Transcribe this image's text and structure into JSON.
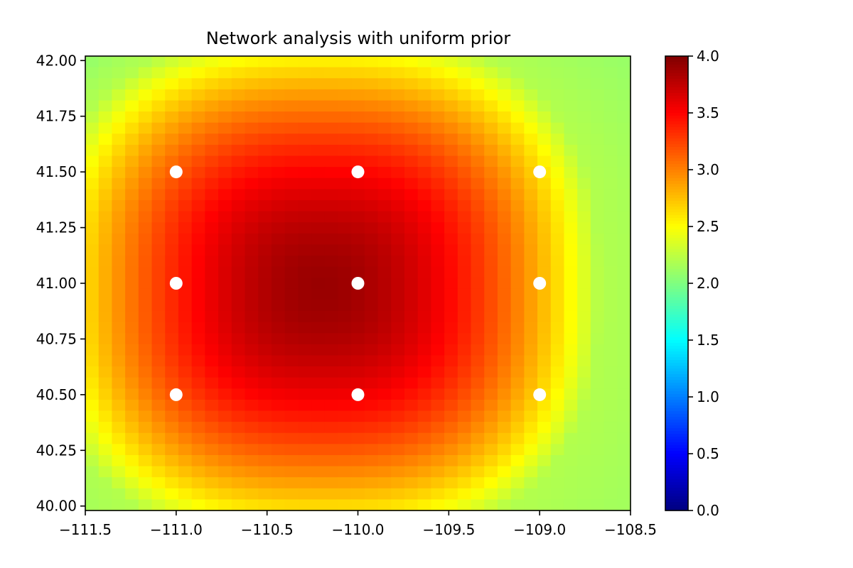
{
  "chart_data": {
    "type": "heatmap",
    "title": "Network analysis with uniform prior",
    "xlabel": "",
    "ylabel": "",
    "xlim": [
      -111.5,
      -108.5
    ],
    "ylim": [
      39.98,
      42.02
    ],
    "grid": false,
    "colormap": "jet",
    "color_range": [
      0.0,
      4.0
    ],
    "grid_resolution": [
      41,
      41
    ],
    "field": {
      "center": [
        -110.2,
        40.98
      ],
      "peak_value": 3.9,
      "radius_x": 1.53,
      "radius_y": 1.16,
      "edge_value": 2.2,
      "corner_values": {
        "top-left": 1.78,
        "top-right": 2.05,
        "bottom-left": 2.0,
        "bottom-right": 2.1
      }
    },
    "x_ticks": [
      -111.5,
      -111.0,
      -110.5,
      -110.0,
      -109.5,
      -109.0,
      -108.5
    ],
    "x_tick_labels": [
      "−111.5",
      "−111.0",
      "−110.5",
      "−110.0",
      "−109.5",
      "−109.0",
      "−108.5"
    ],
    "y_ticks": [
      40.0,
      40.25,
      40.5,
      40.75,
      41.0,
      41.25,
      41.5,
      41.75,
      42.0
    ],
    "y_tick_labels": [
      "40.00",
      "40.25",
      "40.50",
      "40.75",
      "41.00",
      "41.25",
      "41.50",
      "41.75",
      "42.00"
    ],
    "stations": {
      "color": "#ffffff",
      "points": [
        {
          "x": -111.0,
          "y": 41.5
        },
        {
          "x": -110.0,
          "y": 41.5
        },
        {
          "x": -109.0,
          "y": 41.5
        },
        {
          "x": -111.0,
          "y": 41.0
        },
        {
          "x": -110.0,
          "y": 41.0
        },
        {
          "x": -109.0,
          "y": 41.0
        },
        {
          "x": -111.0,
          "y": 40.5
        },
        {
          "x": -110.0,
          "y": 40.5
        },
        {
          "x": -109.0,
          "y": 40.5
        }
      ]
    },
    "colorbar": {
      "ticks": [
        0.0,
        0.5,
        1.0,
        1.5,
        2.0,
        2.5,
        3.0,
        3.5,
        4.0
      ],
      "tick_labels": [
        "0.0",
        "0.5",
        "1.0",
        "1.5",
        "2.0",
        "2.5",
        "3.0",
        "3.5",
        "4.0"
      ]
    }
  }
}
